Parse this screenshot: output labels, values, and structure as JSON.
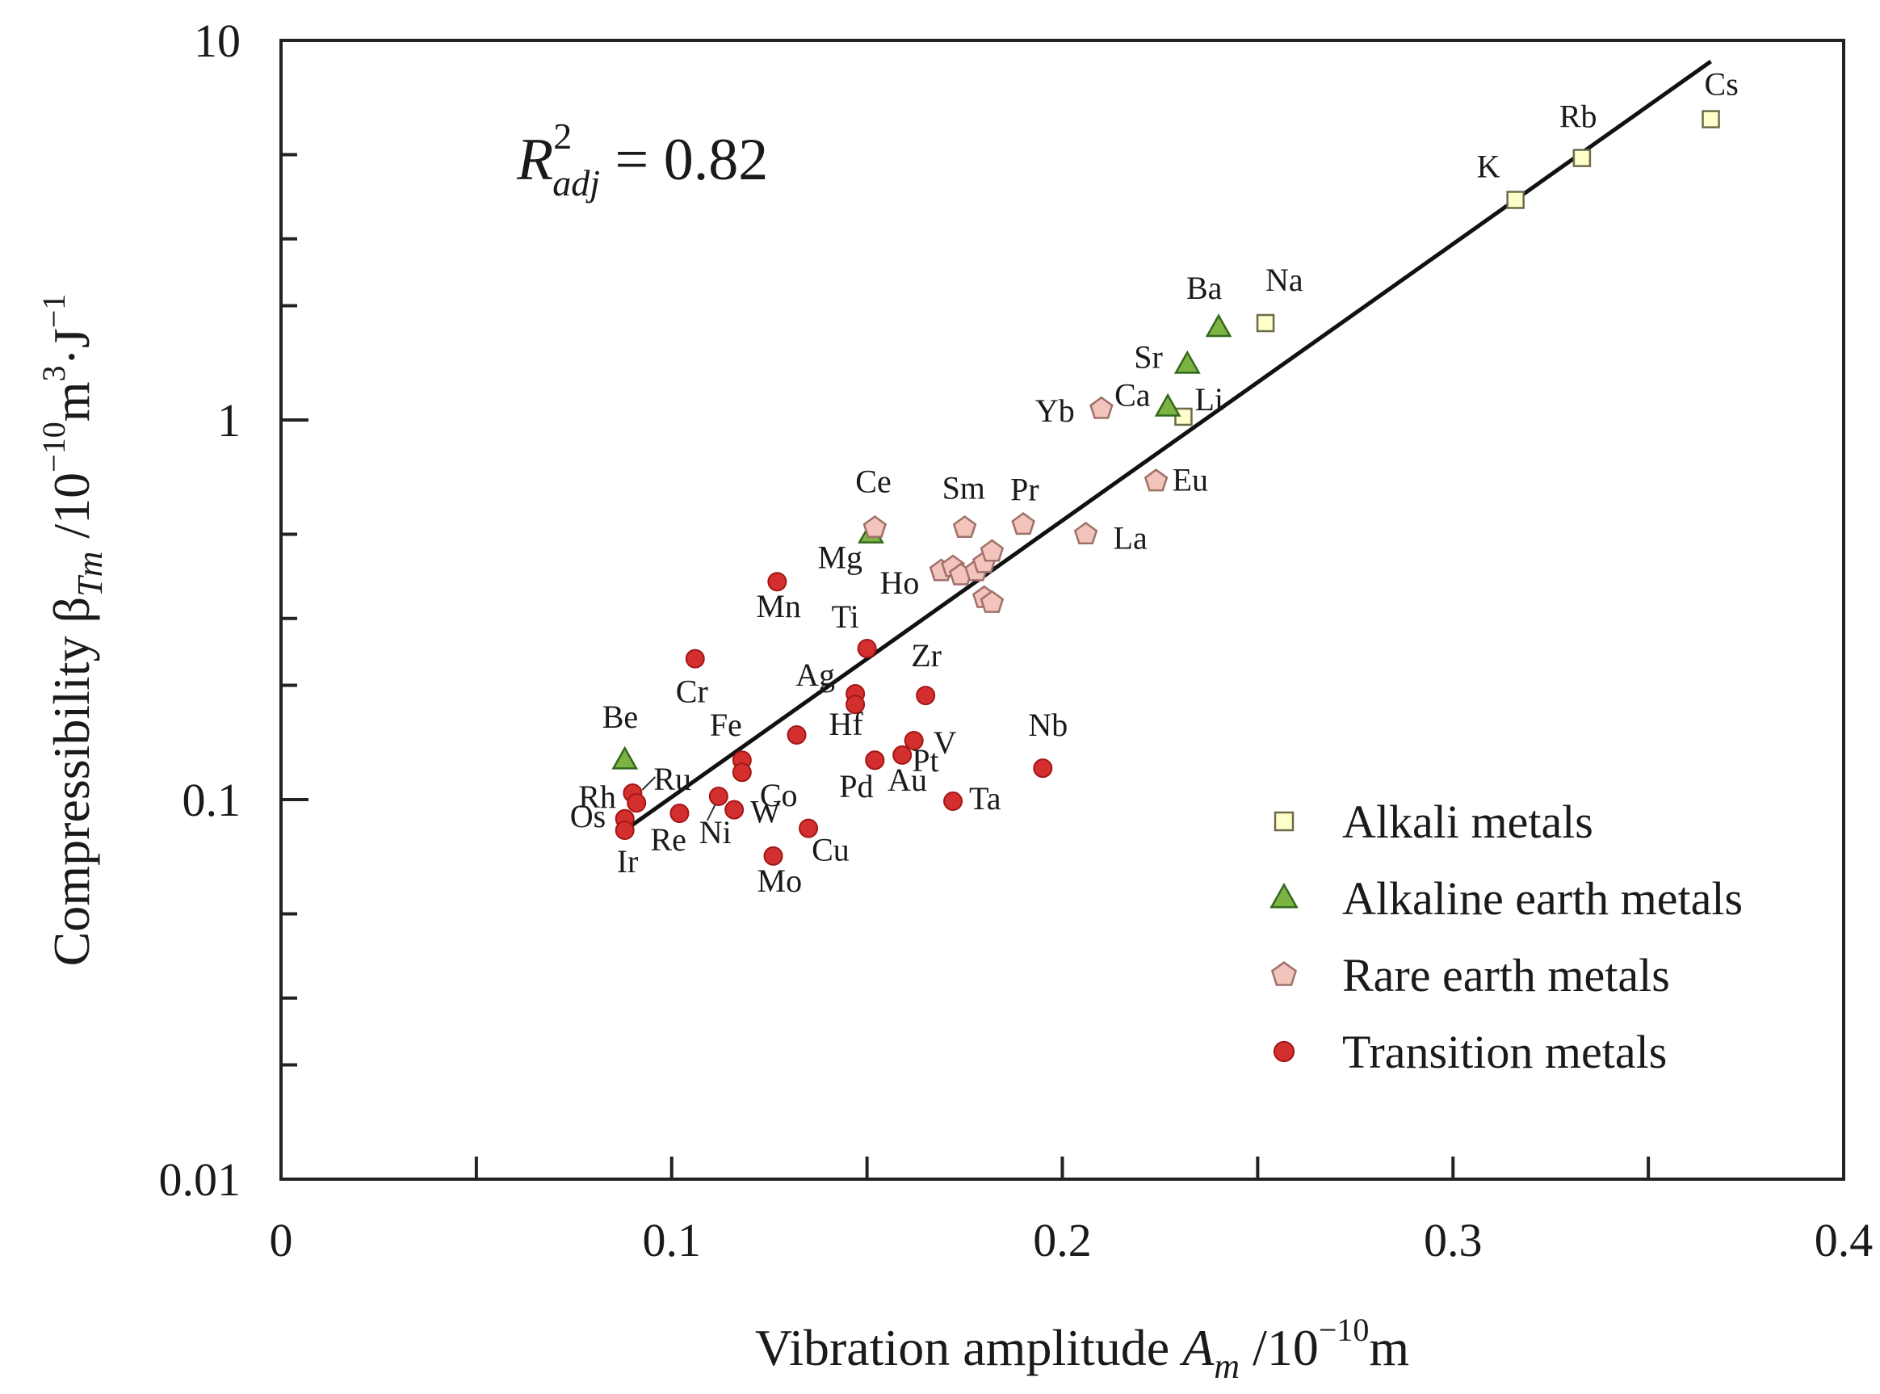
{
  "chart_data": {
    "type": "scatter",
    "title": "",
    "x_axis": {
      "label_main": "Vibration amplitude ",
      "label_var": "A",
      "label_sub": "m",
      "label_unit_prefix": " /10",
      "label_unit_exp": "−10",
      "label_unit_suffix": "m",
      "range": [
        0,
        0.4
      ],
      "ticks": [
        0,
        0.1,
        0.2,
        0.3,
        0.4
      ],
      "tick_labels": [
        "0",
        "0.1",
        "0.2",
        "0.3",
        "0.4"
      ],
      "minor_ticks": [
        0.05,
        0.15,
        0.25,
        0.35
      ]
    },
    "y_axis": {
      "scale": "log",
      "label_main": "Compressibility β",
      "label_sub": "Tm",
      "label_unit_prefix": " /10",
      "label_unit_exp": "−10",
      "label_unit_mid": "m",
      "label_unit_exp2": "3",
      "label_unit_mid2": "·J",
      "label_unit_exp3": "−1",
      "range": [
        0.01,
        10
      ],
      "ticks": [
        0.01,
        0.1,
        1,
        10
      ],
      "tick_labels": [
        "0.01",
        "0.1",
        "1",
        "10"
      ],
      "minor_ticks": [
        0.02,
        0.03,
        0.05,
        0.2,
        0.3,
        0.5,
        2,
        3,
        5
      ]
    },
    "annotation": {
      "r_main": "R",
      "r_exp": "2",
      "r_sub": "adj",
      "r_value": " = 0.82"
    },
    "fit_line": {
      "x": [
        0.088,
        0.366
      ],
      "y": [
        0.083,
        8.8
      ]
    },
    "legend": {
      "position": "bottom-right",
      "entries": [
        {
          "label": "Alkali metals",
          "marker": "square"
        },
        {
          "label": "Alkaline earth metals",
          "marker": "triangle"
        },
        {
          "label": "Rare earth metals",
          "marker": "pentagon"
        },
        {
          "label": "Transition metals",
          "marker": "circle"
        }
      ]
    },
    "series": [
      {
        "name": "Alkali metals",
        "marker": "square",
        "fill": "#ffffcc",
        "stroke": "#6b6b4a",
        "points": [
          {
            "label": "Cs",
            "x": 0.366,
            "y": 6.2
          },
          {
            "label": "Rb",
            "x": 0.333,
            "y": 4.9
          },
          {
            "label": "K",
            "x": 0.316,
            "y": 3.8
          },
          {
            "label": "Na",
            "x": 0.252,
            "y": 1.8
          },
          {
            "label": "Li",
            "x": 0.231,
            "y": 1.02
          }
        ]
      },
      {
        "name": "Alkaline earth metals",
        "marker": "triangle",
        "fill": "#7cb342",
        "stroke": "#33691e",
        "points": [
          {
            "label": "Ba",
            "x": 0.24,
            "y": 1.75
          },
          {
            "label": "Sr",
            "x": 0.232,
            "y": 1.4
          },
          {
            "label": "Ca",
            "x": 0.227,
            "y": 1.08
          },
          {
            "label": "Mg",
            "x": 0.151,
            "y": 0.5
          },
          {
            "label": "Be",
            "x": 0.088,
            "y": 0.127
          }
        ]
      },
      {
        "name": "Rare earth metals",
        "marker": "pentagon",
        "fill": "#f2c4bc",
        "stroke": "#a0706a",
        "points": [
          {
            "label": "Yb",
            "x": 0.21,
            "y": 1.07
          },
          {
            "label": "Eu",
            "x": 0.224,
            "y": 0.69
          },
          {
            "label": "La",
            "x": 0.206,
            "y": 0.5
          },
          {
            "label": "Pr",
            "x": 0.19,
            "y": 0.53
          },
          {
            "label": "Sm",
            "x": 0.175,
            "y": 0.52
          },
          {
            "label": "Ce",
            "x": 0.152,
            "y": 0.52
          },
          {
            "label": "Ho",
            "x": 0.169,
            "y": 0.4
          },
          {
            "label": "",
            "x": 0.172,
            "y": 0.41
          },
          {
            "label": "",
            "x": 0.174,
            "y": 0.39
          },
          {
            "label": "",
            "x": 0.178,
            "y": 0.4
          },
          {
            "label": "",
            "x": 0.18,
            "y": 0.42
          },
          {
            "label": "",
            "x": 0.182,
            "y": 0.45
          },
          {
            "label": "",
            "x": 0.18,
            "y": 0.34
          },
          {
            "label": "",
            "x": 0.182,
            "y": 0.33
          }
        ]
      },
      {
        "name": "Transition metals",
        "marker": "circle",
        "fill": "#d32f2f",
        "stroke": "#a31616",
        "points": [
          {
            "label": "Mn",
            "x": 0.127,
            "y": 0.375
          },
          {
            "label": "Ti",
            "x": 0.15,
            "y": 0.25
          },
          {
            "label": "Cr",
            "x": 0.106,
            "y": 0.235
          },
          {
            "label": "Ag",
            "x": 0.147,
            "y": 0.19
          },
          {
            "label": "",
            "x": 0.147,
            "y": 0.178
          },
          {
            "label": "Zr",
            "x": 0.165,
            "y": 0.188
          },
          {
            "label": "Hf",
            "x": 0.132,
            "y": 0.148
          },
          {
            "label": "V",
            "x": 0.162,
            "y": 0.143
          },
          {
            "label": "Fe",
            "x": 0.118,
            "y": 0.127
          },
          {
            "label": "Co",
            "x": 0.118,
            "y": 0.118
          },
          {
            "label": "Pt",
            "x": 0.152,
            "y": 0.127
          },
          {
            "label": "Au",
            "x": 0.159,
            "y": 0.131
          },
          {
            "label": "Pd",
            "x": 0.152,
            "y": 0.127
          },
          {
            "label": "Nb",
            "x": 0.195,
            "y": 0.121
          },
          {
            "label": "Ta",
            "x": 0.172,
            "y": 0.099
          },
          {
            "label": "Ru",
            "x": 0.09,
            "y": 0.104
          },
          {
            "label": "Rh",
            "x": 0.091,
            "y": 0.098
          },
          {
            "label": "Os",
            "x": 0.088,
            "y": 0.089
          },
          {
            "label": "Ir",
            "x": 0.088,
            "y": 0.083
          },
          {
            "label": "Re",
            "x": 0.102,
            "y": 0.092
          },
          {
            "label": "W",
            "x": 0.116,
            "y": 0.094
          },
          {
            "label": "Ni",
            "x": 0.112,
            "y": 0.102
          },
          {
            "label": "Cu",
            "x": 0.135,
            "y": 0.084
          },
          {
            "label": "Mo",
            "x": 0.126,
            "y": 0.071
          }
        ]
      }
    ]
  }
}
